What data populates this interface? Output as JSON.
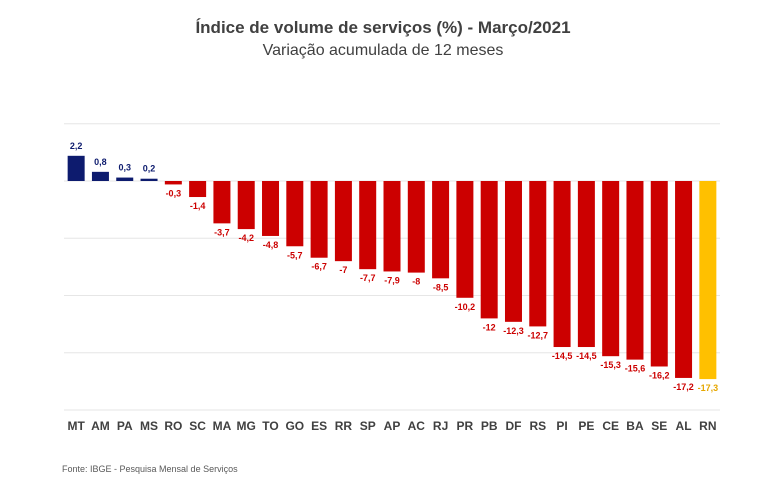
{
  "chart_data": {
    "type": "bar",
    "title": "Índice de volume de serviços (%) - Março/2021",
    "subtitle": "Variação acumulada de 12 meses",
    "categories": [
      "MT",
      "AM",
      "PA",
      "MS",
      "RO",
      "SC",
      "MA",
      "MG",
      "TO",
      "GO",
      "ES",
      "RR",
      "SP",
      "AP",
      "AC",
      "RJ",
      "PR",
      "PB",
      "DF",
      "RS",
      "PI",
      "PE",
      "CE",
      "BA",
      "SE",
      "AL",
      "RN"
    ],
    "values": [
      2.2,
      0.8,
      0.3,
      0.2,
      -0.3,
      -1.4,
      -3.7,
      -4.2,
      -4.8,
      -5.7,
      -6.7,
      -7,
      -7.7,
      -7.9,
      -8,
      -8.5,
      -10.2,
      -12,
      -12.3,
      -12.7,
      -14.5,
      -14.5,
      -15.3,
      -15.6,
      -16.2,
      -17.2,
      -17.3
    ],
    "value_labels": [
      "2,2",
      "0,8",
      "0,3",
      "0,2",
      "-0,3",
      "-1,4",
      "-3,7",
      "-4,2",
      "-4,8",
      "-5,7",
      "-6,7",
      "-7",
      "-7,7",
      "-7,9",
      "-8",
      "-8,5",
      "-10,2",
      "-12",
      "-12,3",
      "-12,7",
      "-14,5",
      "-14,5",
      "-15,3",
      "-15,6",
      "-16,2",
      "-17,2",
      "-17,3"
    ],
    "ylim": [
      -20,
      5
    ],
    "grid": true,
    "legend": "none",
    "xlabel": "",
    "ylabel": "",
    "colors": {
      "positive": "#0d1b6e",
      "negative": "#cc0000",
      "highlight": "#ffc000",
      "highlight_label": "#e6a700",
      "axis_label": "#404040",
      "grid": "#e6e6e6"
    },
    "highlight_category": "RN"
  },
  "source": "Fonte: IBGE - Pesquisa Mensal de Serviços"
}
